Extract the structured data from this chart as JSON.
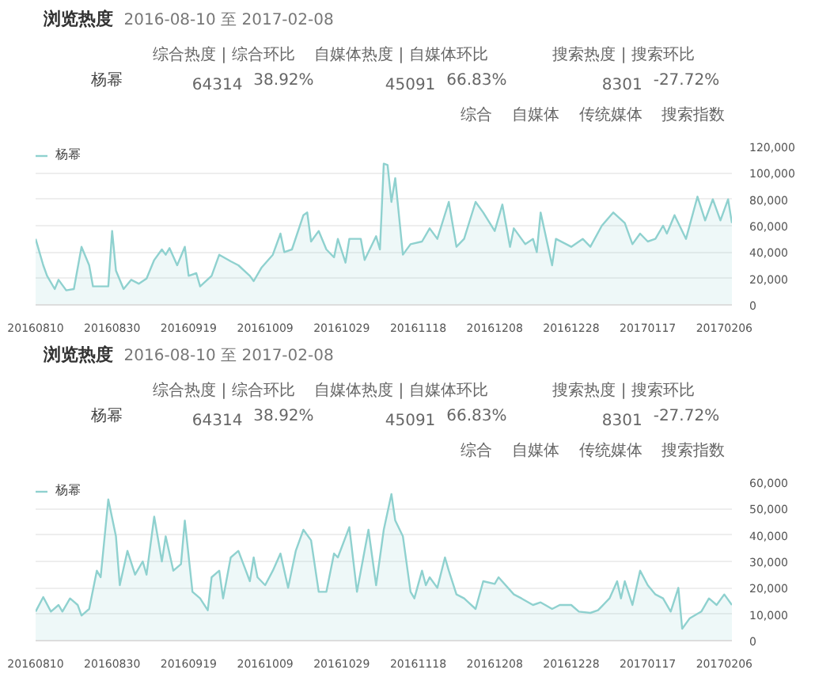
{
  "chart_data": [
    {
      "type": "area",
      "title": "浏览热度",
      "subtitle": "2016-08-10 至 2017-02-08",
      "annotations": [
        "综合热度 | 综合环比",
        "自媒体热度 | 自媒体环比",
        "搜索热度 | 搜索环比",
        "杨幂",
        "64314",
        "38.92%",
        "45091",
        "66.83%",
        "8301",
        "-27.72%",
        "综合",
        "自媒体",
        "传统媒体",
        "搜索指数"
      ],
      "x": [
        "2016-08-10",
        "2016-08-12",
        "2016-08-13",
        "2016-08-15",
        "2016-08-16",
        "2016-08-18",
        "2016-08-20",
        "2016-08-22",
        "2016-08-24",
        "2016-08-25",
        "2016-08-29",
        "2016-08-30",
        "2016-08-31",
        "2016-09-02",
        "2016-09-04",
        "2016-09-06",
        "2016-09-08",
        "2016-09-10",
        "2016-09-12",
        "2016-09-13",
        "2016-09-14",
        "2016-09-16",
        "2016-09-18",
        "2016-09-19",
        "2016-09-21",
        "2016-09-22",
        "2016-09-25",
        "2016-09-27",
        "2016-09-30",
        "2016-10-02",
        "2016-10-05",
        "2016-10-06",
        "2016-10-08",
        "2016-10-11",
        "2016-10-13",
        "2016-10-14",
        "2016-10-16",
        "2016-10-19",
        "2016-10-20",
        "2016-10-21",
        "2016-10-23",
        "2016-10-25",
        "2016-10-27",
        "2016-10-28",
        "2016-10-30",
        "2016-10-31",
        "2016-11-03",
        "2016-11-04",
        "2016-11-07",
        "2016-11-08",
        "2016-11-09",
        "2016-11-10",
        "2016-11-11",
        "2016-11-12",
        "2016-11-14",
        "2016-11-16",
        "2016-11-19",
        "2016-11-21",
        "2016-11-23",
        "2016-11-26",
        "2016-11-28",
        "2016-11-30",
        "2016-12-03",
        "2016-12-05",
        "2016-12-08",
        "2016-12-10",
        "2016-12-12",
        "2016-12-13",
        "2016-12-16",
        "2016-12-18",
        "2016-12-19",
        "2016-12-20",
        "2016-12-23",
        "2016-12-24",
        "2016-12-28",
        "2016-12-31",
        "2017-01-02",
        "2017-01-05",
        "2017-01-08",
        "2017-01-11",
        "2017-01-13",
        "2017-01-15",
        "2017-01-17",
        "2017-01-19",
        "2017-01-21",
        "2017-01-22",
        "2017-01-24",
        "2017-01-27",
        "2017-01-30",
        "2017-02-01",
        "2017-02-03",
        "2017-02-05",
        "2017-02-07",
        "2017-02-08"
      ],
      "series": [
        {
          "name": "杨幂",
          "color": "#8fd1cf",
          "values": [
            50000,
            30000,
            22000,
            12000,
            19000,
            11000,
            12000,
            44000,
            30000,
            14000,
            14000,
            56000,
            26000,
            12000,
            19000,
            16000,
            20000,
            34000,
            42000,
            38000,
            43000,
            30000,
            44000,
            22000,
            24000,
            14000,
            22000,
            38000,
            33000,
            30000,
            22000,
            18000,
            28000,
            38000,
            54000,
            40000,
            42000,
            68000,
            70000,
            48000,
            56000,
            42000,
            36000,
            50000,
            32000,
            50000,
            50000,
            34000,
            52000,
            42000,
            107000,
            106000,
            78000,
            96000,
            38000,
            46000,
            48000,
            58000,
            50000,
            78000,
            44000,
            50000,
            78000,
            70000,
            56000,
            76000,
            44000,
            58000,
            46000,
            50000,
            40000,
            70000,
            30000,
            50000,
            44000,
            50000,
            44000,
            60000,
            70000,
            62000,
            46000,
            54000,
            48000,
            50000,
            60000,
            54000,
            68000,
            50000,
            82000,
            64000,
            80000,
            64000,
            80000,
            62000
          ]
        }
      ],
      "xlim": [
        "2016-08-10",
        "2017-02-08"
      ],
      "xticks": [
        {
          "value": "2016-08-10",
          "label": "20160810"
        },
        {
          "value": "2016-08-30",
          "label": "20160830"
        },
        {
          "value": "2016-09-19",
          "label": "20160919"
        },
        {
          "value": "2016-10-09",
          "label": "20161009"
        },
        {
          "value": "2016-10-29",
          "label": "20161029"
        },
        {
          "value": "2016-11-18",
          "label": "20161118"
        },
        {
          "value": "2016-12-08",
          "label": "20161208"
        },
        {
          "value": "2016-12-28",
          "label": "20161228"
        },
        {
          "value": "2017-01-17",
          "label": "20170117"
        },
        {
          "value": "2017-02-06",
          "label": "20170206"
        }
      ],
      "ylim": [
        0,
        120000
      ],
      "yticks": [
        0,
        {
          "value": 20000,
          "label": "20,000"
        },
        {
          "value": 40000,
          "label": "40,000"
        },
        {
          "value": 60000,
          "label": "60,000"
        },
        {
          "value": 80000,
          "label": "80,000"
        },
        {
          "value": 100000,
          "label": "100,000"
        },
        {
          "value": 120000,
          "label": "120,000"
        }
      ],
      "grid": "y",
      "legend": "top left"
    },
    {
      "type": "area",
      "title": "浏览热度",
      "subtitle": "2016-08-10 至 2017-02-08",
      "annotations": [
        "综合热度 | 综合环比",
        "自媒体热度 | 自媒体环比",
        "搜索热度 | 搜索环比",
        "杨幂",
        "64314",
        "38.92%",
        "45091",
        "66.83%",
        "8301",
        "-27.72%",
        "综合",
        "自媒体",
        "传统媒体",
        "搜索指数"
      ],
      "x": [
        "2016-08-10",
        "2016-08-12",
        "2016-08-14",
        "2016-08-16",
        "2016-08-17",
        "2016-08-19",
        "2016-08-21",
        "2016-08-22",
        "2016-08-24",
        "2016-08-26",
        "2016-08-27",
        "2016-08-29",
        "2016-08-31",
        "2016-09-01",
        "2016-09-03",
        "2016-09-05",
        "2016-09-07",
        "2016-09-08",
        "2016-09-10",
        "2016-09-12",
        "2016-09-13",
        "2016-09-15",
        "2016-09-17",
        "2016-09-18",
        "2016-09-20",
        "2016-09-22",
        "2016-09-24",
        "2016-09-25",
        "2016-09-27",
        "2016-09-28",
        "2016-09-30",
        "2016-10-02",
        "2016-10-05",
        "2016-10-06",
        "2016-10-07",
        "2016-10-09",
        "2016-10-11",
        "2016-10-13",
        "2016-10-15",
        "2016-10-17",
        "2016-10-19",
        "2016-10-21",
        "2016-10-23",
        "2016-10-25",
        "2016-10-27",
        "2016-10-28",
        "2016-10-31",
        "2016-11-02",
        "2016-11-05",
        "2016-11-07",
        "2016-11-09",
        "2016-11-11",
        "2016-11-12",
        "2016-11-14",
        "2016-11-16",
        "2016-11-17",
        "2016-11-19",
        "2016-11-20",
        "2016-11-21",
        "2016-11-23",
        "2016-11-25",
        "2016-11-26",
        "2016-11-28",
        "2016-11-30",
        "2016-12-03",
        "2016-12-05",
        "2016-12-08",
        "2016-12-09",
        "2016-12-13",
        "2016-12-15",
        "2016-12-18",
        "2016-12-20",
        "2016-12-23",
        "2016-12-25",
        "2016-12-28",
        "2016-12-30",
        "2017-01-02",
        "2017-01-04",
        "2017-01-07",
        "2017-01-09",
        "2017-01-10",
        "2017-01-11",
        "2017-01-13",
        "2017-01-15",
        "2017-01-17",
        "2017-01-19",
        "2017-01-21",
        "2017-01-23",
        "2017-01-25",
        "2017-01-26",
        "2017-01-28",
        "2017-01-31",
        "2017-02-02",
        "2017-02-04",
        "2017-02-06",
        "2017-02-08"
      ],
      "series": [
        {
          "name": "杨幂",
          "color": "#8fd1cf",
          "values": [
            11000,
            16500,
            11000,
            13500,
            11000,
            16000,
            13500,
            9500,
            12000,
            26500,
            24000,
            53500,
            39500,
            21000,
            34000,
            25000,
            30000,
            25000,
            47000,
            30000,
            39500,
            26500,
            29000,
            45500,
            18500,
            16000,
            11500,
            24000,
            26500,
            16000,
            31500,
            34000,
            22500,
            31500,
            24000,
            21000,
            26500,
            33000,
            20000,
            34000,
            42000,
            38000,
            18500,
            18500,
            33000,
            31500,
            43000,
            18500,
            42000,
            21000,
            42000,
            55500,
            45500,
            39500,
            18500,
            16000,
            26500,
            21000,
            24000,
            20000,
            31500,
            26500,
            17500,
            16000,
            12000,
            22500,
            21500,
            24000,
            17500,
            16000,
            13500,
            14500,
            12000,
            13500,
            13500,
            11000,
            10500,
            11500,
            16000,
            22500,
            16000,
            22500,
            13500,
            26500,
            21000,
            17500,
            16000,
            11000,
            20000,
            4500,
            8500,
            11000,
            16000,
            13500,
            17500,
            13500
          ]
        }
      ],
      "xlim": [
        "2016-08-10",
        "2017-02-08"
      ],
      "xticks": [
        {
          "value": "2016-08-10",
          "label": "20160810"
        },
        {
          "value": "2016-08-30",
          "label": "20160830"
        },
        {
          "value": "2016-09-19",
          "label": "20160919"
        },
        {
          "value": "2016-10-09",
          "label": "20161009"
        },
        {
          "value": "2016-10-29",
          "label": "20161029"
        },
        {
          "value": "2016-11-18",
          "label": "20161118"
        },
        {
          "value": "2016-12-08",
          "label": "20161208"
        },
        {
          "value": "2016-12-28",
          "label": "20161228"
        },
        {
          "value": "2017-01-17",
          "label": "20170117"
        },
        {
          "value": "2017-02-06",
          "label": "20170206"
        }
      ],
      "ylim": [
        0,
        60000
      ],
      "yticks": [
        0,
        {
          "value": 10000,
          "label": "10,000"
        },
        {
          "value": 20000,
          "label": "20,000"
        },
        {
          "value": 30000,
          "label": "30,000"
        },
        {
          "value": 40000,
          "label": "40,000"
        },
        {
          "value": 50000,
          "label": "50,000"
        },
        {
          "value": 60000,
          "label": "60,000"
        }
      ],
      "grid": "y",
      "legend": "top left"
    }
  ]
}
